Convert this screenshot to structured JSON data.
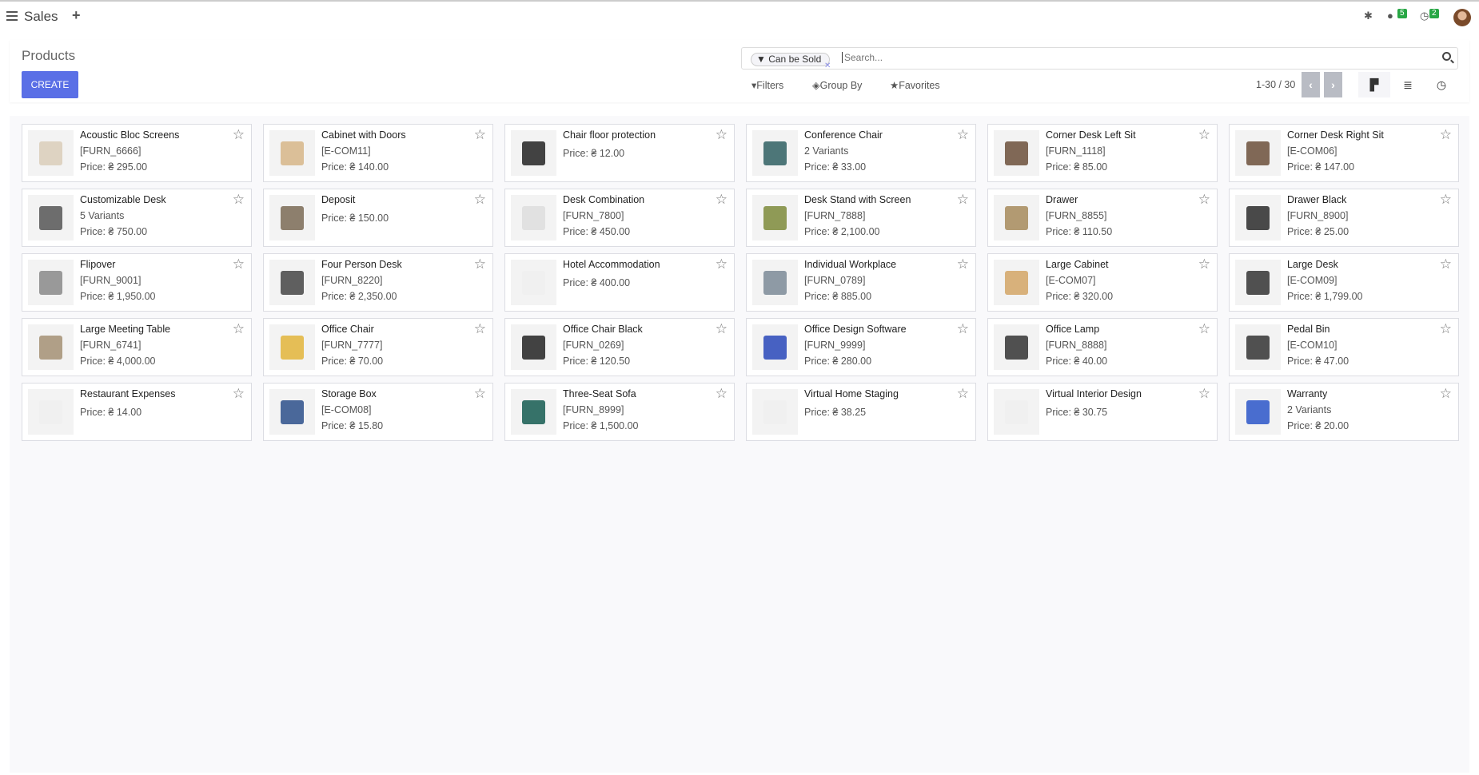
{
  "topbar": {
    "app": "Sales",
    "plus": "+",
    "chat_count": "5",
    "activity_count": "2"
  },
  "page": {
    "title": "Products",
    "create_label": "CREATE"
  },
  "search": {
    "facet": "Can be Sold",
    "placeholder": "Search..."
  },
  "toolbar": {
    "filters": "Filters",
    "group_by": "Group By",
    "favorites": "Favorites",
    "pager": "1-30 / 30"
  },
  "accent": "#5a6fe6",
  "products": [
    {
      "name": "Acoustic Bloc Screens",
      "ref": "[FURN_6666]",
      "price": "Price: ₴ 295.00",
      "img": "#d9cdb8"
    },
    {
      "name": "Cabinet with Doors",
      "ref": "[E-COM11]",
      "price": "Price: ₴ 140.00",
      "img": "#d6b587"
    },
    {
      "name": "Chair floor protection",
      "ref": "",
      "price": "Price: ₴ 12.00",
      "img": "#222222"
    },
    {
      "name": "Conference Chair",
      "ref": "2 Variants",
      "price": "Price: ₴ 33.00",
      "img": "#2f5f62"
    },
    {
      "name": "Corner Desk Left Sit",
      "ref": "[FURN_1118]",
      "price": "Price: ₴ 85.00",
      "img": "#6b4f3a"
    },
    {
      "name": "Corner Desk Right Sit",
      "ref": "[E-COM06]",
      "price": "Price: ₴ 147.00",
      "img": "#6b4f3a"
    },
    {
      "name": "Customizable Desk",
      "ref": "5 Variants",
      "price": "Price: ₴ 750.00",
      "img": "#555555"
    },
    {
      "name": "Deposit",
      "ref": "",
      "price": "Price: ₴ 150.00",
      "img": "#7a6a55"
    },
    {
      "name": "Desk Combination",
      "ref": "[FURN_7800]",
      "price": "Price: ₴ 450.00",
      "img": "#dddddd"
    },
    {
      "name": "Desk Stand with Screen",
      "ref": "[FURN_7888]",
      "price": "Price: ₴ 2,100.00",
      "img": "#7d8a3a"
    },
    {
      "name": "Drawer",
      "ref": "[FURN_8855]",
      "price": "Price: ₴ 110.50",
      "img": "#a68a5b"
    },
    {
      "name": "Drawer Black",
      "ref": "[FURN_8900]",
      "price": "Price: ₴ 25.00",
      "img": "#2a2a2a"
    },
    {
      "name": "Flipover",
      "ref": "[FURN_9001]",
      "price": "Price: ₴ 1,950.00",
      "img": "#888888"
    },
    {
      "name": "Four Person Desk",
      "ref": "[FURN_8220]",
      "price": "Price: ₴ 2,350.00",
      "img": "#444444"
    },
    {
      "name": "Hotel Accommodation",
      "ref": "",
      "price": "Price: ₴ 400.00",
      "img": "#eeeeee"
    },
    {
      "name": "Individual Workplace",
      "ref": "[FURN_0789]",
      "price": "Price: ₴ 885.00",
      "img": "#7b8a96"
    },
    {
      "name": "Large Cabinet",
      "ref": "[E-COM07]",
      "price": "Price: ₴ 320.00",
      "img": "#d2a465"
    },
    {
      "name": "Large Desk",
      "ref": "[E-COM09]",
      "price": "Price: ₴ 1,799.00",
      "img": "#333333"
    },
    {
      "name": "Large Meeting Table",
      "ref": "[FURN_6741]",
      "price": "Price: ₴ 4,000.00",
      "img": "#a38f73"
    },
    {
      "name": "Office Chair",
      "ref": "[FURN_7777]",
      "price": "Price: ₴ 70.00",
      "img": "#e2b43a"
    },
    {
      "name": "Office Chair Black",
      "ref": "[FURN_0269]",
      "price": "Price: ₴ 120.50",
      "img": "#222222"
    },
    {
      "name": "Office Design Software",
      "ref": "[FURN_9999]",
      "price": "Price: ₴ 280.00",
      "img": "#2846b8"
    },
    {
      "name": "Office Lamp",
      "ref": "[FURN_8888]",
      "price": "Price: ₴ 40.00",
      "img": "#333333"
    },
    {
      "name": "Pedal Bin",
      "ref": "[E-COM10]",
      "price": "Price: ₴ 47.00",
      "img": "#333333"
    },
    {
      "name": "Restaurant Expenses",
      "ref": "",
      "price": "Price: ₴ 14.00",
      "img": "#eeeeee"
    },
    {
      "name": "Storage Box",
      "ref": "[E-COM08]",
      "price": "Price: ₴ 15.80",
      "img": "#2b4f8a"
    },
    {
      "name": "Three-Seat Sofa",
      "ref": "[FURN_8999]",
      "price": "Price: ₴ 1,500.00",
      "img": "#145a50"
    },
    {
      "name": "Virtual Home Staging",
      "ref": "",
      "price": "Price: ₴ 38.25",
      "img": "#eeeeee"
    },
    {
      "name": "Virtual Interior Design",
      "ref": "",
      "price": "Price: ₴ 30.75",
      "img": "#eeeeee"
    },
    {
      "name": "Warranty",
      "ref": "2 Variants",
      "price": "Price: ₴ 20.00",
      "img": "#2a55c8"
    }
  ]
}
